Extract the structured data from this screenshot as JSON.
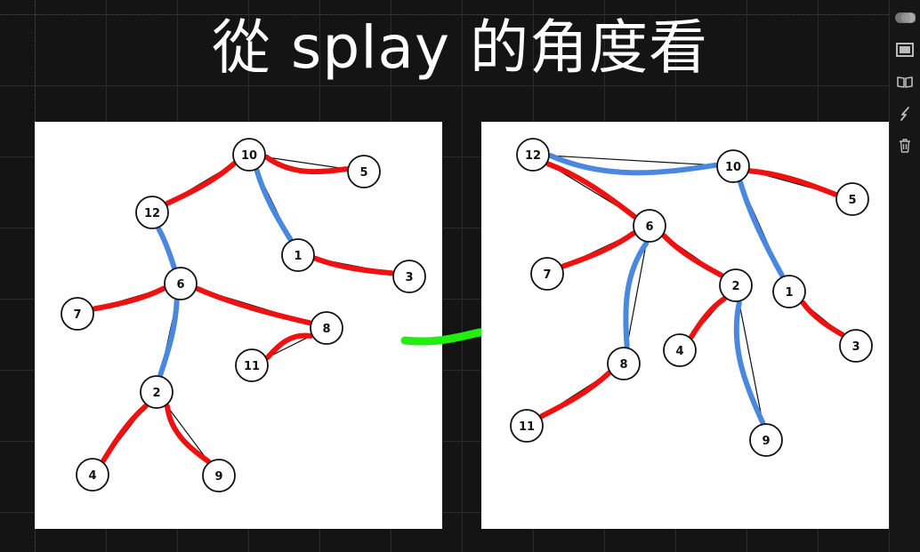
{
  "title": "從 splay 的角度看",
  "colors": {
    "background": "#141414",
    "panel": "#ffffff",
    "red_edge": "#ee1111",
    "blue_edge": "#4a88e0",
    "arrow": "#22ee11"
  },
  "left_tree": {
    "nodes": [
      "10",
      "5",
      "12",
      "1",
      "3",
      "6",
      "7",
      "8",
      "11",
      "2",
      "4",
      "9"
    ],
    "edges": [
      {
        "from": "10",
        "to": "5",
        "color": "red"
      },
      {
        "from": "10",
        "to": "12",
        "color": "red"
      },
      {
        "from": "10",
        "to": "1",
        "color": "blue"
      },
      {
        "from": "1",
        "to": "3",
        "color": "red"
      },
      {
        "from": "12",
        "to": "6",
        "color": "blue"
      },
      {
        "from": "6",
        "to": "7",
        "color": "red"
      },
      {
        "from": "6",
        "to": "8",
        "color": "red"
      },
      {
        "from": "8",
        "to": "11",
        "color": "red"
      },
      {
        "from": "6",
        "to": "2",
        "color": "blue"
      },
      {
        "from": "2",
        "to": "4",
        "color": "red"
      },
      {
        "from": "2",
        "to": "9",
        "color": "red"
      }
    ]
  },
  "right_tree": {
    "nodes": [
      "12",
      "10",
      "5",
      "1",
      "3",
      "6",
      "7",
      "2",
      "4",
      "9",
      "8",
      "11"
    ],
    "edges": [
      {
        "from": "12",
        "to": "10",
        "color": "blue"
      },
      {
        "from": "10",
        "to": "5",
        "color": "red"
      },
      {
        "from": "10",
        "to": "1",
        "color": "blue"
      },
      {
        "from": "1",
        "to": "3",
        "color": "red"
      },
      {
        "from": "12",
        "to": "6",
        "color": "red"
      },
      {
        "from": "6",
        "to": "7",
        "color": "red"
      },
      {
        "from": "6",
        "to": "2",
        "color": "red"
      },
      {
        "from": "6",
        "to": "8",
        "color": "blue"
      },
      {
        "from": "8",
        "to": "11",
        "color": "red"
      },
      {
        "from": "2",
        "to": "4",
        "color": "red"
      },
      {
        "from": "2",
        "to": "9",
        "color": "blue"
      }
    ]
  },
  "toolbar": {
    "items": [
      "toggle-icon",
      "slide-icon",
      "book-icon",
      "lightning-icon",
      "trash-icon"
    ]
  }
}
